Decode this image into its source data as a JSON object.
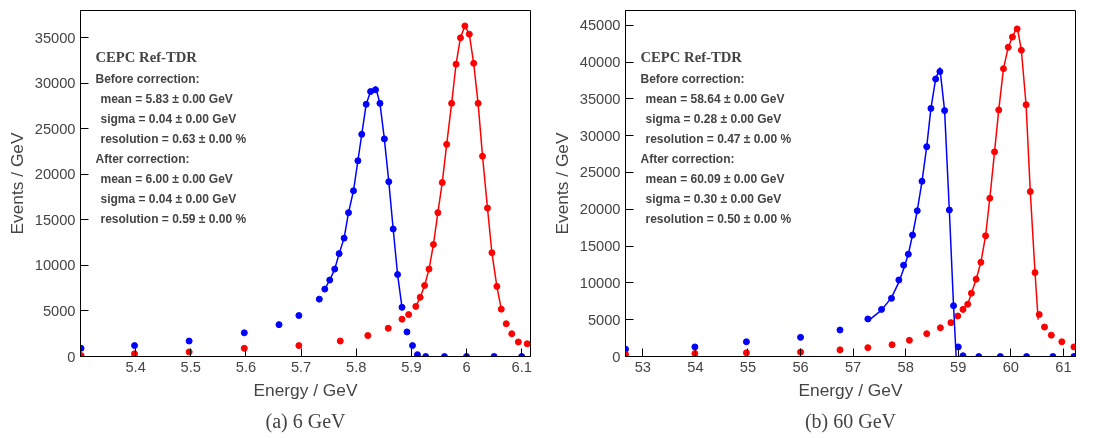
{
  "chart_data": [
    {
      "type": "scatter",
      "title": "(a) 6 GeV",
      "xlabel": "Energy / GeV",
      "ylabel": "Events / GeV",
      "xlim": [
        5.3,
        6.116
      ],
      "ylim": [
        0,
        38000
      ],
      "xticks": [
        5.4,
        5.5,
        5.6,
        5.7,
        5.8,
        5.9,
        6,
        6.1
      ],
      "yticks": [
        0,
        5000,
        10000,
        15000,
        20000,
        25000,
        30000,
        35000
      ],
      "grid": false,
      "marker": "circle",
      "annotations": [
        "CEPC Ref-TDR",
        "Before correction:",
        "mean = 5.83 ± 0.00 GeV",
        "sigma = 0.04 ± 0.00 GeV",
        "resolution = 0.63 ± 0.00 %",
        "After correction:",
        "mean = 6.00 ± 0.00 GeV",
        "sigma = 0.04 ± 0.00 GeV",
        "resolution = 0.59 ± 0.00 %"
      ],
      "series": [
        {
          "color": "#0000ff",
          "x": [
            5.301,
            5.398,
            5.497,
            5.597,
            5.66,
            5.696,
            5.733,
            5.743,
            5.752,
            5.761,
            5.769,
            5.778,
            5.786,
            5.795,
            5.803,
            5.81,
            5.818,
            5.826,
            5.835,
            5.843,
            5.851,
            5.859,
            5.867,
            5.875,
            5.883,
            5.892,
            5.902,
            5.911,
            5.926,
            5.96,
            6.0,
            6.05,
            6.1
          ],
          "values": [
            900,
            1200,
            1700,
            2600,
            3500,
            4500,
            6300,
            7400,
            8400,
            9600,
            11300,
            13000,
            15800,
            18200,
            21500,
            24400,
            27700,
            29100,
            29300,
            27800,
            23900,
            19200,
            14000,
            9000,
            5400,
            2700,
            1200,
            200,
            0,
            0,
            0,
            0,
            0
          ]
        },
        {
          "color": "#ff0000",
          "x": [
            5.301,
            5.398,
            5.497,
            5.597,
            5.696,
            5.771,
            5.821,
            5.858,
            5.883,
            5.895,
            5.908,
            5.916,
            5.924,
            5.932,
            5.94,
            5.948,
            5.956,
            5.964,
            5.973,
            5.981,
            5.989,
            5.997,
            6.005,
            6.013,
            6.021,
            6.029,
            6.038,
            6.046,
            6.055,
            6.063,
            6.072,
            6.082,
            6.094,
            6.11
          ],
          "values": [
            100,
            300,
            500,
            900,
            1200,
            1700,
            2300,
            3100,
            4100,
            4600,
            5500,
            6500,
            7800,
            9600,
            12300,
            15800,
            19100,
            23300,
            27800,
            32100,
            35000,
            36300,
            35400,
            32200,
            27800,
            22000,
            16300,
            11400,
            7700,
            5200,
            3600,
            2500,
            1600,
            1400
          ]
        },
        {
          "type": "line",
          "marker": "none",
          "color": "#0000ff",
          "x": [
            5.743,
            5.752,
            5.761,
            5.769,
            5.778,
            5.786,
            5.795,
            5.803,
            5.81,
            5.818,
            5.826,
            5.835,
            5.843,
            5.851,
            5.859,
            5.867,
            5.875,
            5.883
          ],
          "values": [
            7400,
            8400,
            9600,
            11300,
            13000,
            15800,
            18200,
            21500,
            24400,
            27700,
            29100,
            29600,
            27800,
            23900,
            19200,
            14000,
            9000,
            5400
          ]
        },
        {
          "type": "line",
          "marker": "none",
          "color": "#ff0000",
          "x": [
            5.908,
            5.916,
            5.924,
            5.932,
            5.94,
            5.948,
            5.956,
            5.964,
            5.973,
            5.981,
            5.989,
            5.997,
            6.005,
            6.013,
            6.021,
            6.029,
            6.038,
            6.046,
            6.055,
            6.063
          ],
          "values": [
            5500,
            6500,
            7800,
            9600,
            12300,
            15800,
            19100,
            23300,
            27800,
            32100,
            35000,
            36300,
            35400,
            32200,
            27800,
            22000,
            16300,
            11400,
            7700,
            5200
          ]
        }
      ]
    },
    {
      "type": "scatter",
      "title": "(b) 60 GeV",
      "xlabel": "Energy / GeV",
      "ylabel": "Events / GeV",
      "xlim": [
        52.67,
        61.23
      ],
      "ylim": [
        0,
        47000
      ],
      "xticks": [
        53,
        54,
        55,
        56,
        57,
        58,
        59,
        60,
        61
      ],
      "yticks": [
        0,
        5000,
        10000,
        15000,
        20000,
        25000,
        30000,
        35000,
        40000,
        45000
      ],
      "grid": false,
      "marker": "circle",
      "annotations": [
        "CEPC Ref-TDR",
        "Before correction:",
        "mean = 58.64 ± 0.00 GeV",
        "sigma = 0.28 ± 0.00 GeV",
        "resolution = 0.47 ± 0.00 %",
        "After correction:",
        "mean = 60.09 ± 0.00 GeV",
        "sigma = 0.30 ± 0.00 GeV",
        "resolution = 0.50 ± 0.00 %"
      ],
      "series": [
        {
          "color": "#0000ff",
          "x": [
            52.67,
            53.99,
            54.97,
            56.0,
            56.75,
            57.28,
            57.54,
            57.73,
            57.87,
            57.96,
            58.05,
            58.13,
            58.22,
            58.31,
            58.4,
            58.48,
            58.57,
            58.65,
            58.74,
            58.83,
            58.91,
            59.0,
            59.09,
            59.39,
            59.8,
            60.3,
            60.8,
            61.2
          ],
          "values": [
            1000,
            1300,
            2000,
            2600,
            3600,
            5100,
            6400,
            7900,
            10400,
            12400,
            13900,
            16500,
            19800,
            23800,
            28500,
            33700,
            37700,
            38700,
            33400,
            19900,
            6900,
            1300,
            100,
            0,
            0,
            0,
            0,
            0
          ]
        },
        {
          "color": "#ff0000",
          "x": [
            52.67,
            53.99,
            54.97,
            56.0,
            56.75,
            57.28,
            57.74,
            58.07,
            58.4,
            58.66,
            58.86,
            58.99,
            59.09,
            59.18,
            59.25,
            59.34,
            59.43,
            59.52,
            59.6,
            59.69,
            59.77,
            59.86,
            59.95,
            60.03,
            60.12,
            60.2,
            60.29,
            60.37,
            60.46,
            60.54,
            60.64,
            60.77,
            60.97,
            61.2
          ],
          "values": [
            300,
            400,
            500,
            600,
            900,
            1200,
            1600,
            2200,
            3100,
            3900,
            4600,
            5500,
            6400,
            7100,
            8600,
            10500,
            12800,
            16400,
            21500,
            27800,
            33500,
            39100,
            42000,
            43400,
            44500,
            41600,
            34200,
            22400,
            11400,
            5700,
            4000,
            2900,
            2000,
            1300
          ]
        },
        {
          "type": "line",
          "marker": "none",
          "color": "#0000ff",
          "x": [
            57.28,
            57.54,
            57.73,
            57.87,
            57.96,
            58.05,
            58.13,
            58.22,
            58.31,
            58.4,
            58.48,
            58.57,
            58.65,
            58.74,
            58.83,
            58.91,
            58.96
          ],
          "values": [
            4800,
            6300,
            8000,
            10100,
            11900,
            13900,
            16500,
            19800,
            23800,
            28500,
            33700,
            37700,
            39200,
            33400,
            19900,
            6900,
            0
          ]
        },
        {
          "type": "line",
          "marker": "none",
          "color": "#ff0000",
          "x": [
            59.09,
            59.18,
            59.25,
            59.34,
            59.43,
            59.52,
            59.6,
            59.69,
            59.77,
            59.86,
            59.95,
            60.03,
            60.12,
            60.2,
            60.29,
            60.37,
            60.46,
            60.52
          ],
          "values": [
            6400,
            7100,
            8600,
            10500,
            12800,
            16400,
            21500,
            27800,
            33500,
            39100,
            42000,
            43400,
            44800,
            41600,
            34200,
            22400,
            11400,
            5000
          ]
        }
      ]
    }
  ]
}
